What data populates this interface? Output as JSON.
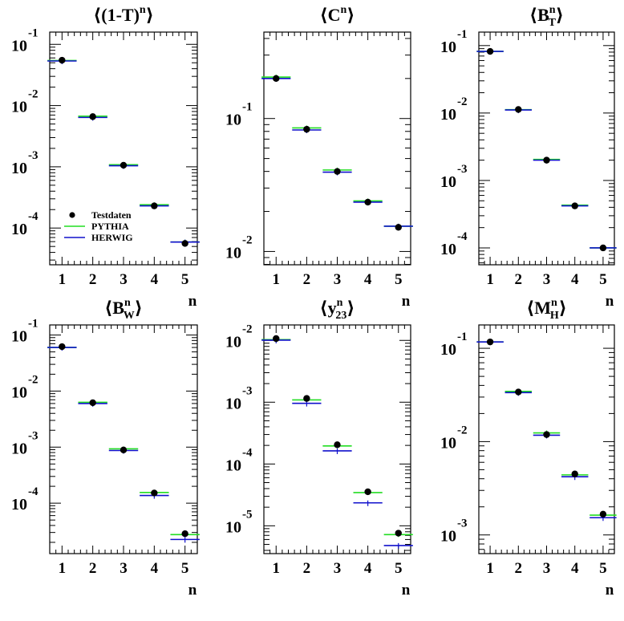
{
  "page": {
    "background": "#ffffff"
  },
  "chart_data": [
    {
      "type": "scatter",
      "title": "⟨(1-T)ⁿ⟩",
      "xlabel": "n",
      "yscale": "log",
      "ylim_log10": [
        -4.6,
        -0.8
      ],
      "xlim": [
        0.6,
        5.4
      ],
      "categories": [
        1,
        2,
        3,
        4,
        5
      ],
      "x": [
        1,
        2,
        3,
        4,
        5
      ],
      "yticks": [
        {
          "mant": "10",
          "exp": "-1"
        },
        {
          "mant": "10",
          "exp": "-2"
        },
        {
          "mant": "10",
          "exp": "-3"
        },
        {
          "mant": "10",
          "exp": "-4"
        }
      ],
      "ytick_exps": [
        -1,
        -2,
        -3,
        -4
      ],
      "series": [
        {
          "name": "Testdaten",
          "values": [
            0.055,
            0.0066,
            0.00106,
            0.00023,
            5.6e-05
          ]
        },
        {
          "name": "PYTHIA",
          "values": [
            0.0545,
            0.0067,
            0.00108,
            0.00024,
            5.9e-05
          ]
        },
        {
          "name": "HERWIG",
          "values": [
            0.0535,
            0.0064,
            0.00104,
            0.00023,
            5.9e-05
          ]
        }
      ]
    },
    {
      "type": "scatter",
      "title": "⟨Cⁿ⟩",
      "xlabel": "n",
      "yscale": "log",
      "ylim_log10": [
        -2.1,
        -0.35
      ],
      "xlim": [
        0.6,
        5.4
      ],
      "categories": [
        1,
        2,
        3,
        4,
        5
      ],
      "x": [
        1,
        2,
        3,
        4,
        5
      ],
      "yticks": [
        {
          "mant": "10",
          "exp": "-1"
        },
        {
          "mant": "10",
          "exp": "-2"
        }
      ],
      "ytick_exps": [
        -1,
        -2
      ],
      "series": [
        {
          "name": "Testdaten",
          "values": [
            0.2,
            0.083,
            0.04,
            0.0235,
            0.0152
          ]
        },
        {
          "name": "PYTHIA",
          "values": [
            0.205,
            0.085,
            0.041,
            0.024,
            0.0155
          ]
        },
        {
          "name": "HERWIG",
          "values": [
            0.2,
            0.082,
            0.0395,
            0.0235,
            0.0155
          ]
        }
      ]
    },
    {
      "type": "scatter",
      "title": "⟨B_Tⁿ⟩",
      "xlabel": "n",
      "yscale": "log",
      "ylim_log10": [
        -4.25,
        -0.8
      ],
      "xlim": [
        0.6,
        5.4
      ],
      "categories": [
        1,
        2,
        3,
        4,
        5
      ],
      "x": [
        1,
        2,
        3,
        4,
        5
      ],
      "yticks": [
        {
          "mant": "10",
          "exp": "-1"
        },
        {
          "mant": "10",
          "exp": "-2"
        },
        {
          "mant": "10",
          "exp": "-3"
        },
        {
          "mant": "10",
          "exp": "-4"
        }
      ],
      "ytick_exps": [
        -1,
        -2,
        -3,
        -4
      ],
      "series": [
        {
          "name": "Testdaten",
          "values": [
            0.082,
            0.0113,
            0.002,
            0.00042,
            0.0001
          ]
        },
        {
          "name": "PYTHIA",
          "values": [
            0.082,
            0.0112,
            0.00205,
            0.00043,
            0.0001
          ]
        },
        {
          "name": "HERWIG",
          "values": [
            0.082,
            0.0111,
            0.002,
            0.00042,
            0.0001
          ]
        }
      ]
    },
    {
      "type": "scatter",
      "title": "⟨B_Wⁿ⟩",
      "xlabel": "n",
      "yscale": "log",
      "ylim_log10": [
        -4.9,
        -0.82
      ],
      "xlim": [
        0.6,
        5.4
      ],
      "categories": [
        1,
        2,
        3,
        4,
        5
      ],
      "x": [
        1,
        2,
        3,
        4,
        5
      ],
      "yticks": [
        {
          "mant": "10",
          "exp": "-1"
        },
        {
          "mant": "10",
          "exp": "-2"
        },
        {
          "mant": "10",
          "exp": "-3"
        },
        {
          "mant": "10",
          "exp": "-4"
        }
      ],
      "ytick_exps": [
        -1,
        -2,
        -3,
        -4
      ],
      "series": [
        {
          "name": "Testdaten",
          "values": [
            0.062,
            0.0062,
            0.00089,
            0.000152,
            2.85e-05
          ]
        },
        {
          "name": "PYTHIA",
          "values": [
            0.06,
            0.0063,
            0.00093,
            0.000155,
            2.75e-05
          ]
        },
        {
          "name": "HERWIG",
          "values": [
            0.06,
            0.006,
            0.00087,
            0.000137,
            2.25e-05
          ]
        }
      ]
    },
    {
      "type": "scatter",
      "title": "⟨y₂₃ⁿ⟩",
      "xlabel": "n",
      "yscale": "log",
      "ylim_log10": [
        -5.45,
        -1.75
      ],
      "xlim": [
        0.6,
        5.4
      ],
      "categories": [
        1,
        2,
        3,
        4,
        5
      ],
      "x": [
        1,
        2,
        3,
        4,
        5
      ],
      "yticks": [
        {
          "mant": "10",
          "exp": "-2"
        },
        {
          "mant": "10",
          "exp": "-3"
        },
        {
          "mant": "10",
          "exp": "-4"
        },
        {
          "mant": "10",
          "exp": "-5"
        }
      ],
      "ytick_exps": [
        -2,
        -3,
        -4,
        -5
      ],
      "series": [
        {
          "name": "Testdaten",
          "values": [
            0.0107,
            0.00115,
            0.000205,
            3.55e-05,
            7.6e-06
          ]
        },
        {
          "name": "PYTHIA",
          "values": [
            0.0103,
            0.00109,
            0.000196,
            3.45e-05,
            7.2e-06
          ]
        },
        {
          "name": "HERWIG",
          "values": [
            0.0101,
            0.00096,
            0.000163,
            2.35e-05,
            4.8e-06
          ]
        }
      ]
    },
    {
      "type": "scatter",
      "title": "⟨M_Hⁿ⟩",
      "xlabel": "n",
      "yscale": "log",
      "ylim_log10": [
        -3.2,
        -0.75
      ],
      "xlim": [
        0.6,
        5.4
      ],
      "categories": [
        1,
        2,
        3,
        4,
        5
      ],
      "x": [
        1,
        2,
        3,
        4,
        5
      ],
      "yticks": [
        {
          "mant": "10",
          "exp": "-1"
        },
        {
          "mant": "10",
          "exp": "-2"
        },
        {
          "mant": "10",
          "exp": "-3"
        }
      ],
      "ytick_exps": [
        -1,
        -2,
        -3
      ],
      "series": [
        {
          "name": "Testdaten",
          "values": [
            0.117,
            0.034,
            0.0119,
            0.0045,
            0.00167
          ]
        },
        {
          "name": "PYTHIA",
          "values": [
            0.117,
            0.0345,
            0.0124,
            0.0044,
            0.00163
          ]
        },
        {
          "name": "HERWIG",
          "values": [
            0.117,
            0.0335,
            0.0117,
            0.0042,
            0.00153
          ]
        }
      ]
    }
  ],
  "legend": {
    "placement": "bottom-left of first panel",
    "items": [
      {
        "label": "Testdaten",
        "marker": "dot",
        "color": "#000000"
      },
      {
        "label": "PYTHIA",
        "marker": "line",
        "color": "#00cc00"
      },
      {
        "label": "HERWIG",
        "marker": "line",
        "color": "#0000cc"
      }
    ]
  },
  "colors": {
    "data": "#000000",
    "pythia": "#22dd22",
    "herwig": "#1010cc"
  }
}
